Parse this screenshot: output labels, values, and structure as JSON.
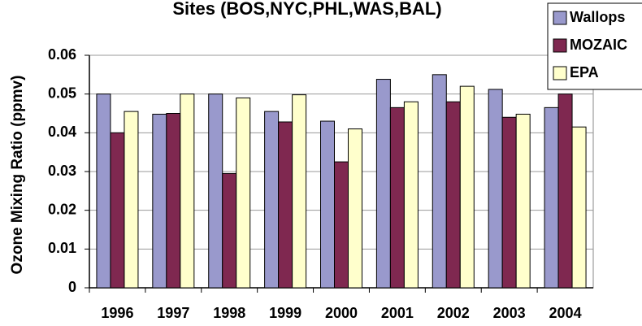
{
  "chart_data": {
    "type": "bar",
    "title": "Sites (BOS,NYC,PHL,WAS,BAL)",
    "y_label": "Ozone Mixing Ratio (ppmv)",
    "categories": [
      "1996",
      "1997",
      "1998",
      "1999",
      "2000",
      "2001",
      "2002",
      "2003",
      "2004"
    ],
    "series": [
      {
        "name": "Wallops",
        "color": "#9999cc",
        "values": [
          0.05,
          0.0448,
          0.05,
          0.0455,
          0.043,
          0.0538,
          0.055,
          0.0512,
          0.0465
        ]
      },
      {
        "name": "MOZAIC",
        "color": "#7f2850",
        "values": [
          0.04,
          0.045,
          0.0295,
          0.0428,
          0.0325,
          0.0465,
          0.048,
          0.044,
          0.05
        ]
      },
      {
        "name": "EPA",
        "color": "#ffffcc",
        "values": [
          0.0455,
          0.05,
          0.049,
          0.0498,
          0.041,
          0.048,
          0.052,
          0.0448,
          0.0415
        ]
      }
    ],
    "ylim": [
      0,
      0.06
    ],
    "yticks": [
      0,
      0.01,
      0.02,
      0.03,
      0.04,
      0.05,
      0.06
    ],
    "grid": true,
    "legend": "top-right"
  }
}
